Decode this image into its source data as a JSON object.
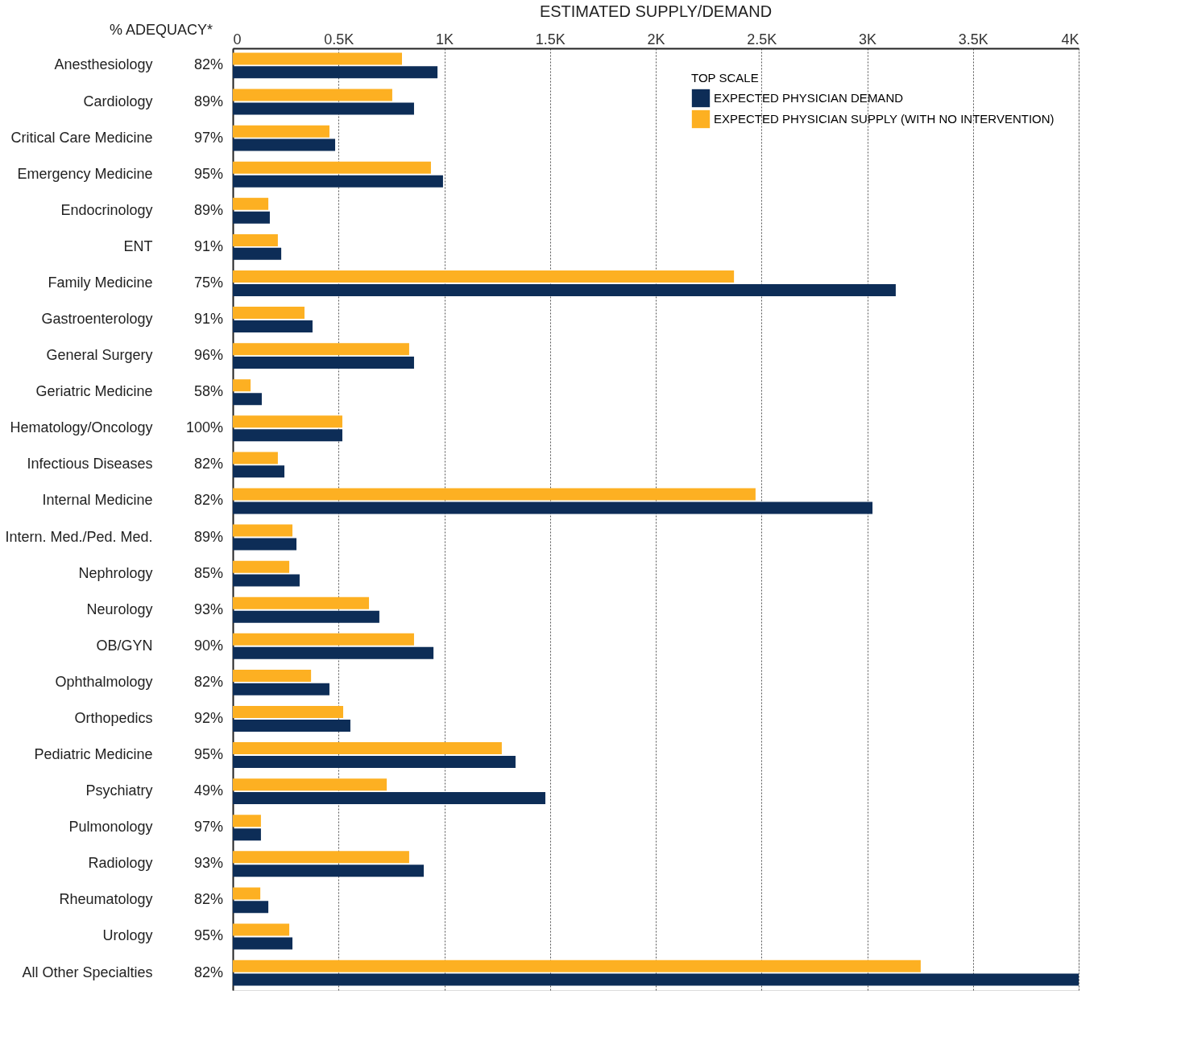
{
  "chart_data": {
    "type": "bar",
    "orientation": "horizontal",
    "title": "ESTIMATED SUPPLY/DEMAND",
    "legend_title": "TOP SCALE",
    "legend": "top right",
    "grid": "x",
    "categories": [
      "Anesthesiology",
      "Cardiology",
      "Critical Care Medicine",
      "Emergency Medicine",
      "Endocrinology",
      "ENT",
      "Family Medicine",
      "Gastroenterology",
      "General Surgery",
      "Geriatric Medicine",
      "Hematology/Oncology",
      "Infectious Diseases",
      "Internal Medicine",
      "Intern. Med./Ped. Med.",
      "Nephrology",
      "Neurology",
      "OB/GYN",
      "Ophthalmology",
      "Orthopedics",
      "Pediatric Medicine",
      "Psychiatry",
      "Pulmonology",
      "Radiology",
      "Rheumatology",
      "Urology",
      "All Other Specialties"
    ],
    "series": [
      {
        "name": "EXPECTED PHYSICIAN SUPPLY (WITH NO INTERVENTION)",
        "color": "#fdb022",
        "values": [
          800,
          754,
          457,
          937,
          168,
          213,
          2370,
          339,
          834,
          84,
          518,
          213,
          2472,
          282,
          267,
          644,
          857,
          370,
          522,
          1272,
          728,
          133,
          834,
          130,
          267,
          3253
        ]
      },
      {
        "name": "EXPECTED PHYSICIAN DEMAND",
        "color": "#0d2d57",
        "values": [
          968,
          857,
          484,
          994,
          175,
          229,
          3135,
          377,
          857,
          137,
          518,
          244,
          3025,
          301,
          316,
          693,
          949,
          457,
          556,
          1337,
          1478,
          133,
          903,
          168,
          282,
          4000
        ]
      }
    ],
    "xlim": [
      0,
      4000
    ],
    "xticks": [
      0,
      {
        "value": 500,
        "label": "0.5K"
      },
      {
        "value": 1000,
        "label": "1K"
      },
      {
        "value": 1500,
        "label": "1.5K"
      },
      {
        "value": 2000,
        "label": "2K"
      },
      {
        "value": 2500,
        "label": "2.5K"
      },
      {
        "value": 3000,
        "label": "3K"
      },
      {
        "value": 3500,
        "label": "3.5K"
      },
      {
        "value": 4000,
        "label": "4K"
      }
    ],
    "annotations": [
      "% ADEQUACY*",
      "82%",
      "89%",
      "97%",
      "95%",
      "89%",
      "91%",
      "75%",
      "91%",
      "96%",
      "58%",
      "100%",
      "82%",
      "82%",
      "89%",
      "85%",
      "93%",
      "90%",
      "82%",
      "92%",
      "95%",
      "49%",
      "97%",
      "93%",
      "82%",
      "95%",
      "82%"
    ]
  }
}
